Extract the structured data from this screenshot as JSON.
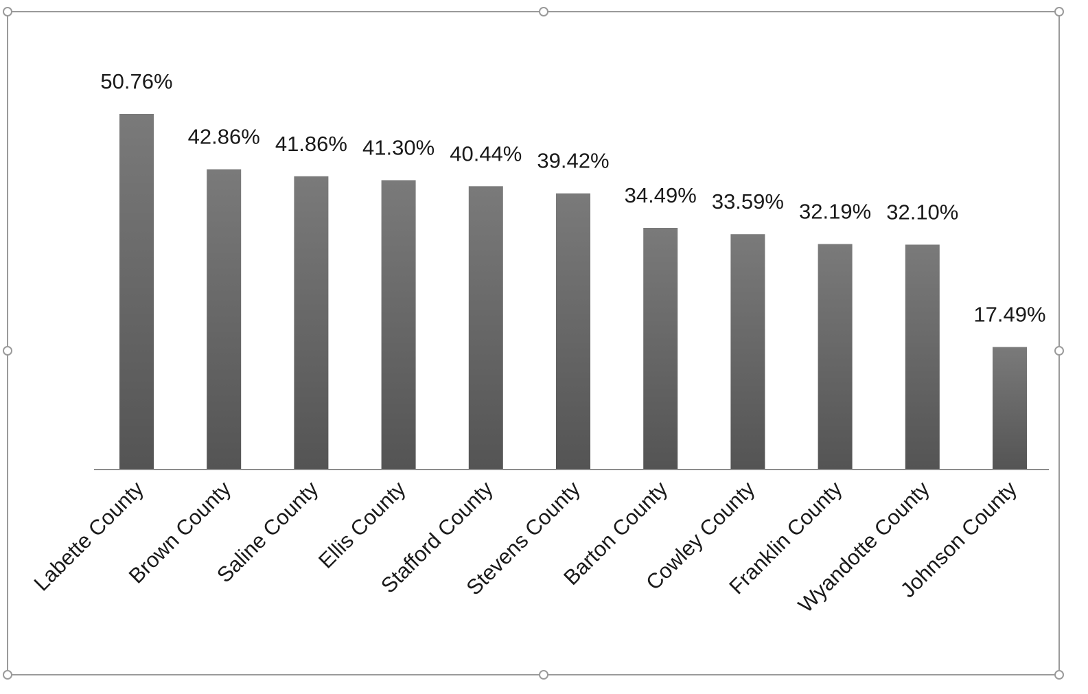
{
  "chart_data": {
    "type": "bar",
    "categories": [
      "Labette County",
      "Brown County",
      "Saline County",
      "Ellis County",
      "Stafford County",
      "Stevens County",
      "Barton County",
      "Cowley County",
      "Franklin County",
      "Wyandotte County",
      "Johnson County"
    ],
    "values": [
      50.76,
      42.86,
      41.86,
      41.3,
      40.44,
      39.42,
      34.49,
      33.59,
      32.19,
      32.1,
      17.49
    ],
    "data_labels": [
      "50.76%",
      "42.86%",
      "41.86%",
      "41.30%",
      "40.44%",
      "39.42%",
      "34.49%",
      "33.59%",
      "32.19%",
      "32.10%",
      "17.49%"
    ],
    "title": "",
    "xlabel": "",
    "ylabel": "",
    "ylim": [
      0,
      50.76
    ],
    "grid": false,
    "legend": "none",
    "colors": {
      "bar_top": "#7a7a7a",
      "bar_bottom": "#545454",
      "axis": "#8c8c8c",
      "frame": "#9a9a9a",
      "handle_stroke": "#9a9a9a",
      "handle_fill": "#ffffff"
    }
  }
}
